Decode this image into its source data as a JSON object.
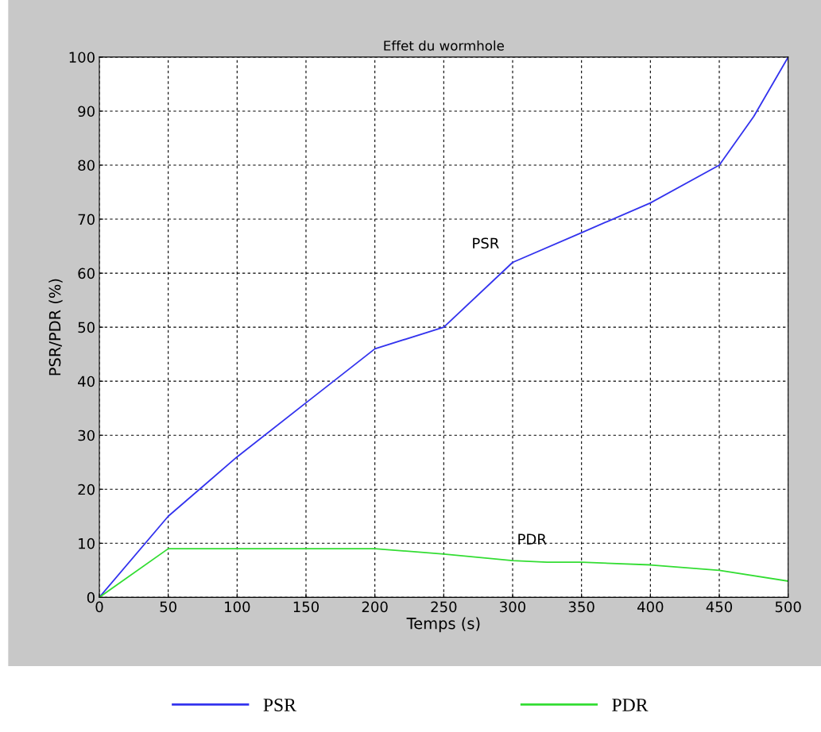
{
  "chart_data": {
    "type": "line",
    "title": "Effet du wormhole",
    "xlabel": "Temps (s)",
    "ylabel": "PSR/PDR (%)",
    "series": [
      {
        "name": "PSR",
        "color": "#3333ee",
        "x": [
          0,
          50,
          100,
          150,
          200,
          250,
          300,
          350,
          400,
          450,
          475,
          500
        ],
        "values": [
          0,
          15,
          26,
          36,
          46,
          50,
          62,
          67.5,
          73,
          80,
          89,
          100
        ]
      },
      {
        "name": "PDR",
        "color": "#33dd33",
        "x": [
          0,
          50,
          100,
          150,
          200,
          250,
          300,
          325,
          350,
          400,
          450,
          500
        ],
        "values": [
          0,
          9,
          9,
          9,
          9,
          8,
          6.8,
          6.5,
          6.5,
          6,
          5,
          3
        ]
      }
    ],
    "xlim": [
      0,
      500
    ],
    "xticks": [
      0,
      50,
      100,
      150,
      200,
      250,
      300,
      350,
      400,
      450,
      500
    ],
    "ylim": [
      0,
      100
    ],
    "yticks": [
      0,
      10,
      20,
      30,
      40,
      50,
      60,
      70,
      80,
      90,
      100
    ],
    "grid": true,
    "legend": "bottom",
    "line_style": "solid",
    "marker": "none"
  }
}
